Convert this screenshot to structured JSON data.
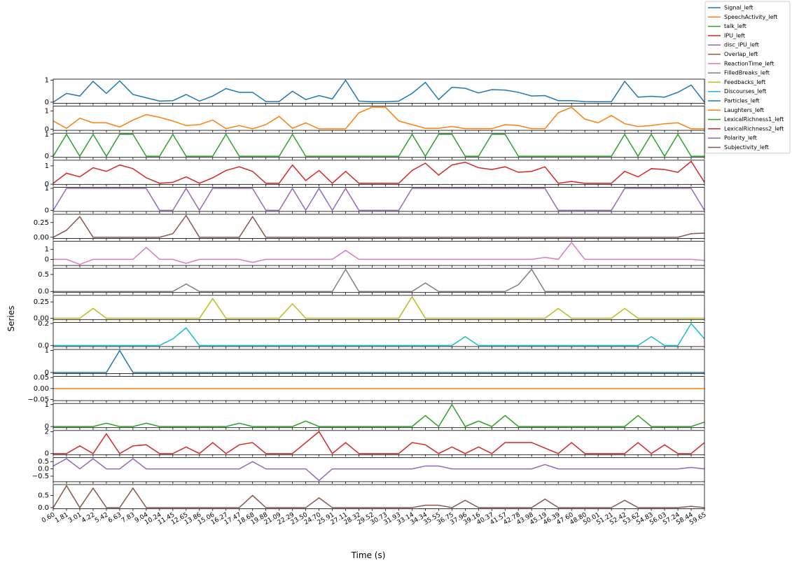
{
  "chart_data": {
    "type": "line",
    "xlabel": "Time (s)",
    "ylabel": "Series",
    "legend": "upper right",
    "categories": [
      "0.60",
      "1.81",
      "3.01",
      "4.22",
      "5.42",
      "6.63",
      "7.83",
      "9.04",
      "10.24",
      "11.45",
      "12.65",
      "13.86",
      "15.06",
      "16.27",
      "17.47",
      "18.68",
      "19.88",
      "21.09",
      "22.29",
      "23.50",
      "24.70",
      "25.91",
      "27.11",
      "28.32",
      "29.52",
      "30.73",
      "31.93",
      "33.14",
      "34.34",
      "35.55",
      "36.75",
      "37.96",
      "39.16",
      "40.37",
      "41.57",
      "42.78",
      "43.98",
      "45.19",
      "46.39",
      "47.60",
      "48.80",
      "50.01",
      "51.21",
      "52.42",
      "53.62",
      "54.83",
      "56.03",
      "57.24",
      "58.44",
      "59.65"
    ],
    "series": [
      {
        "name": "Signal_left",
        "color": "#1f77b4",
        "ylim": [
          -0.05,
          1.05
        ],
        "yticks": [
          0,
          1
        ],
        "values": [
          0,
          0.4,
          0.28,
          0.95,
          0.4,
          0.97,
          0.35,
          0.2,
          0.05,
          0.07,
          0.35,
          0.05,
          0.28,
          0.62,
          0.45,
          0.45,
          0.03,
          0.03,
          0.5,
          0.12,
          0.3,
          0.15,
          1,
          0.05,
          0.02,
          0.02,
          0.05,
          0.4,
          0.9,
          0.12,
          0.68,
          0.63,
          0.42,
          0.57,
          0.55,
          0.45,
          0.28,
          0.3,
          0.07,
          0.07,
          0.03,
          0.02,
          0.02,
          0.95,
          0.23,
          0.27,
          0.23,
          0.45,
          0.78,
          0
        ]
      },
      {
        "name": "SpeechActivity_left",
        "color": "#ff7f0e",
        "ylim": [
          -0.06,
          1.26
        ],
        "yticks": [
          0,
          1
        ],
        "values": [
          0.45,
          0.05,
          0.6,
          0.35,
          0.35,
          0.12,
          0.5,
          0.8,
          0.65,
          0.45,
          0.2,
          0.25,
          0.5,
          0.03,
          0.2,
          0.02,
          0.25,
          0.7,
          0.05,
          0.35,
          0.02,
          0.02,
          0.02,
          0.9,
          1.2,
          1.2,
          0.45,
          0.25,
          0.05,
          0.05,
          0.15,
          0.03,
          0.03,
          0.03,
          0.25,
          0.2,
          0.03,
          0.03,
          0.9,
          1.2,
          0.55,
          0.35,
          0.75,
          0.3,
          0.15,
          0.2,
          0.3,
          0.35,
          0.02,
          0.02
        ]
      },
      {
        "name": "talk_left",
        "color": "#2ca02c",
        "ylim": [
          -0.05,
          1.05
        ],
        "yticks": [
          0,
          1
        ],
        "values": [
          0,
          1,
          0,
          1,
          0,
          1,
          1,
          0,
          0,
          1,
          0,
          0,
          0,
          1,
          0,
          0,
          0,
          0,
          1,
          0,
          0,
          0,
          0,
          0,
          0,
          0,
          0,
          1,
          0,
          1,
          1,
          0,
          0,
          1,
          1,
          0,
          0,
          0,
          0,
          0,
          0,
          0,
          0,
          1,
          0,
          1,
          0,
          1,
          0,
          0
        ]
      },
      {
        "name": "IPU_left",
        "color": "#d62728",
        "ylim": [
          -0.01,
          1.31
        ],
        "yticks": [
          0,
          1
        ],
        "values": [
          0.05,
          0.6,
          0.4,
          0.9,
          0.7,
          1.05,
          0.85,
          0.35,
          0.05,
          0.1,
          0.4,
          0.05,
          0.35,
          0.75,
          0.95,
          0.7,
          0.05,
          0.05,
          1.05,
          0.2,
          0.75,
          0.05,
          0.7,
          0.05,
          0.05,
          0.05,
          0.05,
          0.75,
          1.15,
          0.5,
          1.05,
          1.2,
          0.9,
          0.8,
          0.95,
          0.65,
          0.7,
          0.95,
          0.05,
          0.15,
          0.05,
          0.05,
          0.05,
          0.7,
          0.4,
          0.85,
          0.8,
          0.65,
          1.25,
          0.1
        ]
      },
      {
        "name": "disc_IPU_left",
        "color": "#9467bd",
        "ylim": [
          -0.05,
          1.05
        ],
        "yticks": [
          0,
          1
        ],
        "values": [
          0,
          1,
          1,
          1,
          1,
          1,
          1,
          1,
          0,
          0,
          1,
          0,
          1,
          1,
          1,
          1,
          0,
          0,
          1,
          0,
          1,
          0,
          1,
          0,
          0,
          0,
          0,
          1,
          1,
          1,
          1,
          1,
          1,
          1,
          1,
          1,
          1,
          1,
          0,
          0,
          0,
          0,
          0,
          1,
          1,
          1,
          1,
          1,
          1,
          0
        ]
      },
      {
        "name": "Overlap_left",
        "color": "#8c564b",
        "ylim": [
          -0.02,
          0.39
        ],
        "yticks": [
          {
            "value": 0,
            "label": "0.00"
          },
          0.25
        ],
        "values": [
          0,
          0.12,
          0.35,
          0,
          0,
          0,
          0,
          0,
          0,
          0.06,
          0.37,
          0,
          0,
          0,
          0,
          0.35,
          0,
          0,
          0,
          0,
          0,
          0,
          0,
          0,
          0,
          0,
          0,
          0,
          0,
          0,
          0,
          0,
          0,
          0,
          0,
          0,
          0,
          0,
          0,
          0,
          0,
          0,
          0,
          0,
          0,
          0,
          0,
          0,
          0.06,
          0.07
        ]
      },
      {
        "name": "ReactionTime_left",
        "color": "#e377c2",
        "ylim": [
          -0.61,
          1.81
        ],
        "yticks": [
          0,
          1
        ],
        "values": [
          0,
          0,
          -0.5,
          0,
          0,
          0,
          0,
          1.2,
          0,
          0,
          -0.4,
          0,
          0,
          0,
          0,
          -0.3,
          0,
          0,
          0,
          0,
          0,
          0,
          0.9,
          0,
          0,
          0,
          0,
          0,
          0,
          0,
          0,
          0,
          0,
          0,
          0,
          0,
          0,
          0.2,
          0,
          1.7,
          0,
          0,
          0,
          0,
          0,
          0,
          0,
          0,
          0,
          -0.1
        ]
      },
      {
        "name": "FilledBreaks_left",
        "color": "#7f7f7f",
        "ylim": [
          -0.03,
          0.68
        ],
        "yticks": [
          {
            "value": 0,
            "label": "0.0"
          },
          0.5
        ],
        "values": [
          0,
          0,
          0,
          0,
          0,
          0,
          0,
          0,
          0,
          0,
          0.22,
          0,
          0,
          0,
          0,
          0,
          0,
          0,
          0,
          0,
          0,
          0,
          0.65,
          0,
          0,
          0,
          0,
          0,
          0.25,
          0,
          0,
          0,
          0,
          0,
          0,
          0.2,
          0.65,
          0,
          0,
          0,
          0,
          0,
          0,
          0,
          0,
          0,
          0,
          0,
          0,
          0
        ]
      },
      {
        "name": "Feedbacks_left",
        "color": "#bcbd22",
        "ylim": [
          -0.02,
          0.35
        ],
        "yticks": [
          {
            "value": 0,
            "label": "0.00"
          },
          0.25
        ],
        "values": [
          0,
          0,
          0,
          0.15,
          0,
          0,
          0,
          0,
          0,
          0,
          0,
          0,
          0.3,
          0,
          0,
          0,
          0,
          0,
          0.22,
          0,
          0,
          0,
          0,
          0,
          0,
          0,
          0,
          0.33,
          0,
          0,
          0,
          0,
          0,
          0,
          0,
          0,
          0,
          0,
          0.15,
          0,
          0,
          0,
          0,
          0.15,
          0,
          0,
          0,
          0,
          0,
          0
        ]
      },
      {
        "name": "Discourses_left",
        "color": "#17becf",
        "ylim": [
          -0.01,
          0.21
        ],
        "yticks": [
          {
            "value": 0,
            "label": "0.0"
          },
          0.2
        ],
        "values": [
          0,
          0,
          0,
          0,
          0,
          0,
          0,
          0,
          0,
          0.06,
          0.16,
          0,
          0,
          0,
          0,
          0,
          0,
          0,
          0,
          0,
          0,
          0,
          0,
          0,
          0,
          0,
          0,
          0,
          0,
          0,
          0,
          0.08,
          0,
          0,
          0,
          0,
          0,
          0,
          0,
          0,
          0,
          0,
          0,
          0,
          0,
          0.08,
          0,
          0,
          0.2,
          0.06
        ]
      },
      {
        "name": "Particles_left",
        "color": "#1f77b4",
        "ylim": [
          -0.05,
          1.05
        ],
        "yticks": [
          0,
          1
        ],
        "values": [
          0,
          0,
          0,
          0,
          0,
          1,
          0,
          0,
          0,
          0,
          0,
          0,
          0,
          0,
          0,
          0,
          0,
          0,
          0,
          0,
          0,
          0,
          0,
          0,
          0,
          0,
          0,
          0,
          0,
          0,
          0,
          0,
          0,
          0,
          0,
          0,
          0,
          0,
          0,
          0,
          0,
          0,
          0,
          0,
          0,
          0,
          0,
          0,
          0,
          0
        ]
      },
      {
        "name": "Laughters_left",
        "color": "#ff7f0e",
        "ylim": [
          -0.055,
          0.055
        ],
        "yticks": [
          {
            "value": -0.05,
            "label": "−0.05"
          },
          {
            "value": 0,
            "label": "0.00"
          },
          {
            "value": 0.05,
            "label": "0.05"
          }
        ],
        "values": [
          0,
          0,
          0,
          0,
          0,
          0,
          0,
          0,
          0,
          0,
          0,
          0,
          0,
          0,
          0,
          0,
          0,
          0,
          0,
          0,
          0,
          0,
          0,
          0,
          0,
          0,
          0,
          0,
          0,
          0,
          0,
          0,
          0,
          0,
          0,
          0,
          0,
          0,
          0,
          0,
          0,
          0,
          0,
          0,
          0,
          0,
          0,
          0,
          0,
          0
        ]
      },
      {
        "name": "LexicalRichness1_left",
        "color": "#2ca02c",
        "ylim": [
          -0.05,
          1.05
        ],
        "yticks": [
          0,
          1
        ],
        "values": [
          0,
          0,
          0,
          0,
          0.15,
          0,
          0,
          0.15,
          0,
          0,
          0,
          0,
          0,
          0,
          0.15,
          0,
          0,
          0,
          0,
          0.25,
          0,
          0,
          0,
          0,
          0,
          0,
          0,
          0,
          0.5,
          0,
          1,
          0,
          0.25,
          0,
          0.5,
          0,
          0,
          0,
          0,
          0,
          0,
          0,
          0,
          0,
          0.5,
          0,
          0,
          0,
          0,
          0.2
        ]
      },
      {
        "name": "LexicalRichness2_left",
        "color": "#d62728",
        "ylim": [
          -0.1,
          2.1
        ],
        "yticks": [
          0,
          2
        ],
        "values": [
          0,
          0,
          0.7,
          0,
          1.8,
          0,
          0.7,
          0.8,
          0,
          0,
          0.6,
          0,
          1,
          0,
          0.8,
          1,
          0,
          0,
          0,
          1,
          2,
          0,
          1,
          0,
          0,
          0,
          0,
          1,
          0.8,
          0,
          0.6,
          0,
          0.6,
          0,
          1,
          1,
          1,
          0.5,
          0,
          1,
          0,
          0,
          0,
          0,
          1,
          0,
          0.8,
          0,
          0,
          1
        ]
      },
      {
        "name": "Polarity_left",
        "color": "#9467bd",
        "ylim": [
          -0.88,
          0.78
        ],
        "yticks": [
          {
            "value": -0.5,
            "label": "−0.5"
          },
          {
            "value": 0,
            "label": "0.0"
          },
          {
            "value": 0.5,
            "label": "0.5"
          }
        ],
        "values": [
          0.2,
          0.7,
          0,
          0.7,
          0,
          0,
          0.7,
          0,
          0,
          0,
          0,
          0,
          0,
          0,
          0,
          0.5,
          0,
          0,
          0,
          0,
          -0.8,
          0,
          0,
          0,
          0,
          0,
          0,
          0,
          0.2,
          0.2,
          0,
          0,
          0,
          0,
          0,
          0,
          0,
          0.3,
          0,
          0,
          0,
          0,
          0,
          0,
          0,
          0,
          0,
          0,
          0.1,
          0
        ]
      },
      {
        "name": "Subjectivity_left",
        "color": "#8c564b",
        "ylim": [
          -0.045,
          0.945
        ],
        "yticks": [
          {
            "value": 0,
            "label": "0.0"
          },
          0.5
        ],
        "values": [
          0,
          0.9,
          0,
          0.8,
          0,
          0,
          0.8,
          0,
          0,
          0,
          0,
          0,
          0,
          0,
          0,
          0.5,
          0,
          0,
          0,
          0,
          0.4,
          0,
          0,
          0,
          0,
          0,
          0,
          0,
          0.1,
          0.1,
          0,
          0.3,
          0,
          0,
          0,
          0,
          0,
          0.35,
          0,
          0,
          0,
          0,
          0,
          0.3,
          0,
          0,
          0,
          0,
          0.05,
          0
        ]
      }
    ]
  }
}
